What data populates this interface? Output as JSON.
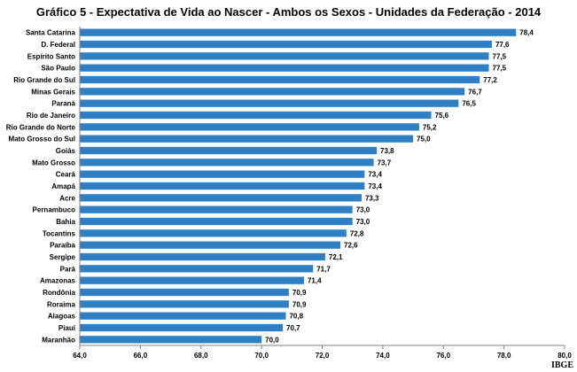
{
  "chart_data": {
    "type": "bar",
    "orientation": "horizontal",
    "title": "Gráfico 5 - Expectativa de Vida ao Nascer - Ambos os Sexos -  Unidades da Federação  - 2014",
    "source": "IBGE",
    "categories": [
      "Santa Catarina",
      "D. Federal",
      "Espírito Santo",
      "São Paulo",
      "Rio Grande do Sul",
      "Minas Gerais",
      "Paraná",
      "Rio de Janeiro",
      "Rio Grande do Norte",
      "Mato Grosso do Sul",
      "Goiás",
      "Mato Grosso",
      "Ceará",
      "Amapá",
      "Acre",
      "Pernambuco",
      "Bahia",
      "Tocantins",
      "Paraíba",
      "Sergipe",
      "Pará",
      "Amazonas",
      "Rondônia",
      "Roraima",
      "Alagoas",
      "Piauí",
      "Maranhão"
    ],
    "values": [
      78.4,
      77.6,
      77.5,
      77.5,
      77.2,
      76.7,
      76.5,
      75.6,
      75.2,
      75.0,
      73.8,
      73.7,
      73.4,
      73.4,
      73.3,
      73.0,
      73.0,
      72.8,
      72.6,
      72.1,
      71.7,
      71.4,
      70.9,
      70.9,
      70.8,
      70.7,
      70.0
    ],
    "value_labels": [
      "78,4",
      "77,6",
      "77,5",
      "77,5",
      "77,2",
      "76,7",
      "76,5",
      "75,6",
      "75,2",
      "75,0",
      "73,8",
      "73,7",
      "73,4",
      "73,4",
      "73,3",
      "73,0",
      "73,0",
      "72,8",
      "72,6",
      "72,1",
      "71,7",
      "71,4",
      "70,9",
      "70,9",
      "70,8",
      "70,7",
      "70,0"
    ],
    "xlim": [
      64,
      80
    ],
    "x_ticks": [
      64,
      66,
      68,
      70,
      72,
      74,
      76,
      78,
      80
    ],
    "x_tick_labels": [
      "64,0",
      "66,0",
      "68,0",
      "70,0",
      "72,0",
      "74,0",
      "76,0",
      "78,0",
      "80,0"
    ],
    "xlabel": "",
    "ylabel": "",
    "grid": false,
    "bar_color": "#2E7FC4"
  }
}
